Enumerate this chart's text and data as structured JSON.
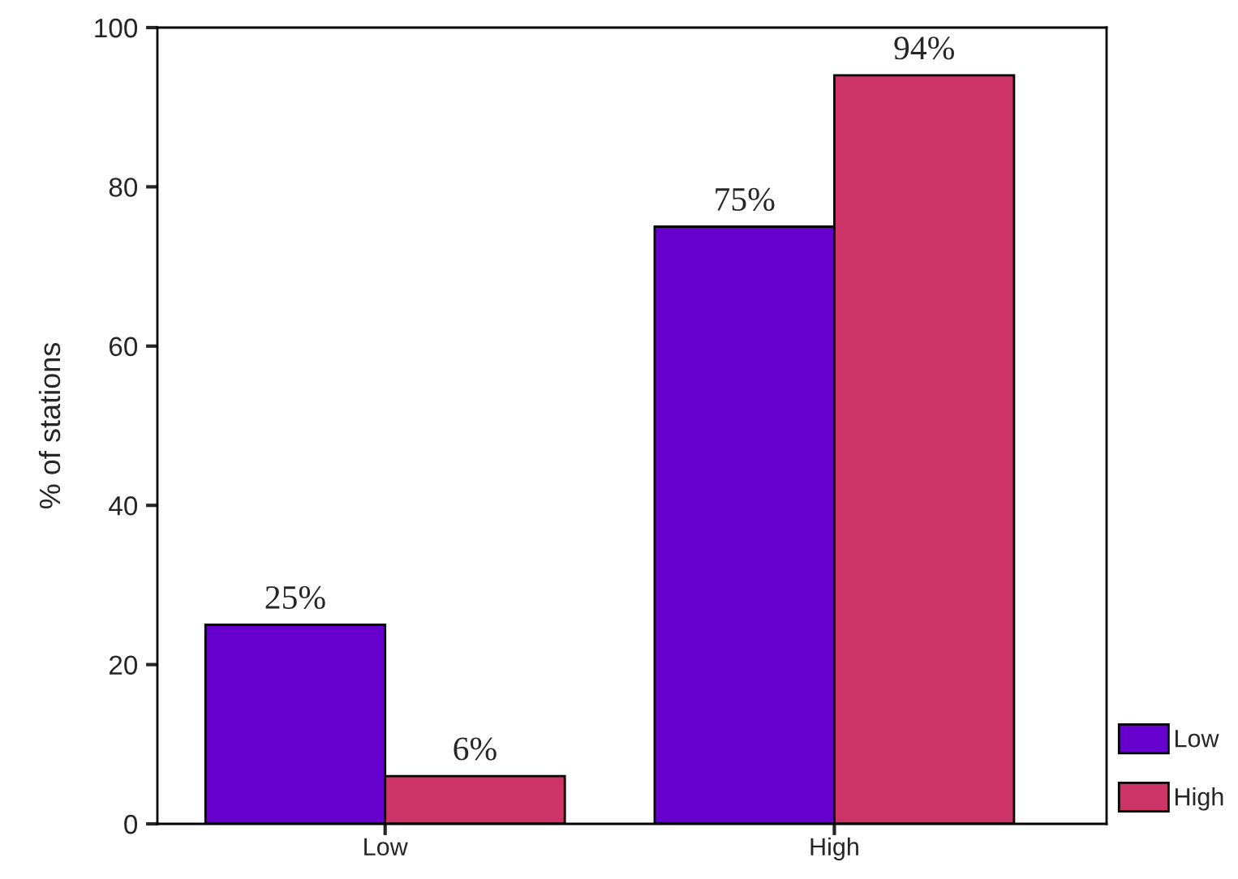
{
  "chart_data": {
    "type": "bar",
    "ylabel": "% of stations",
    "categories": [
      "Low",
      "High"
    ],
    "series": [
      {
        "name": "Low",
        "color": "#6600cc",
        "values": [
          25,
          75
        ],
        "value_labels": [
          "25%",
          "75%"
        ]
      },
      {
        "name": "High",
        "color": "#cc3366",
        "values": [
          6,
          94
        ],
        "value_labels": [
          "6%",
          "94%"
        ]
      }
    ],
    "ylim": [
      0,
      100
    ],
    "yticks": [
      0,
      20,
      40,
      60,
      80,
      100
    ],
    "grid": false,
    "legend": "bottom right"
  }
}
